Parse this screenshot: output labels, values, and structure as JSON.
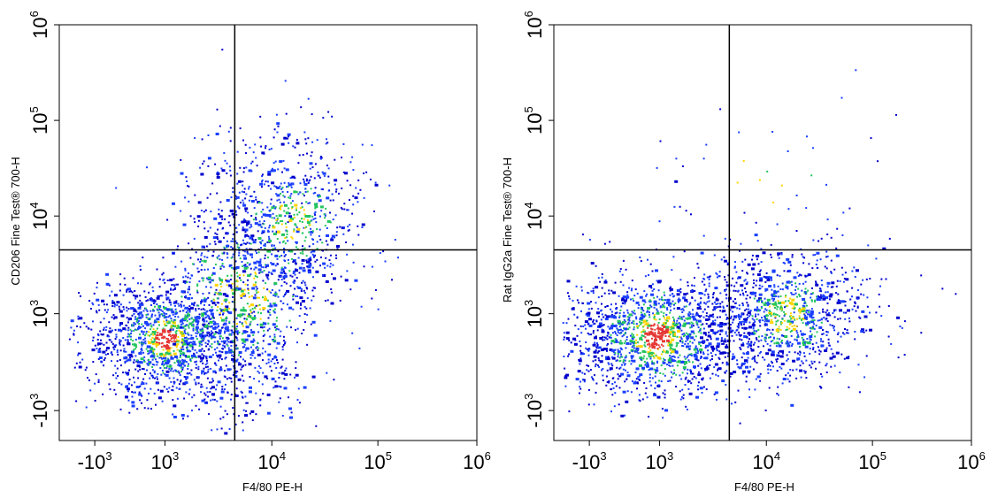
{
  "chart_data": [
    {
      "type": "scatter",
      "subtype": "flow-cytometry-density-dot-plot",
      "xlabel": "F4/80 PE-H",
      "ylabel": "CD206 Fine Test® 700-H",
      "x_scale": "biexponential",
      "y_scale": "biexponential",
      "x_ticks": [
        {
          "base": "-10",
          "exp": "3"
        },
        {
          "base": "10",
          "exp": "3"
        },
        {
          "base": "10",
          "exp": "4"
        },
        {
          "base": "10",
          "exp": "5"
        },
        {
          "base": "10",
          "exp": "6"
        }
      ],
      "y_ticks": [
        {
          "base": "-10",
          "exp": "3"
        },
        {
          "base": "10",
          "exp": "3"
        },
        {
          "base": "10",
          "exp": "4"
        },
        {
          "base": "10",
          "exp": "5"
        },
        {
          "base": "10",
          "exp": "6"
        }
      ],
      "gate": {
        "x": 4500,
        "y": 4500
      },
      "density_colors": [
        "#0000cc",
        "#1a3fff",
        "#22c55e",
        "#ffd400",
        "#e53935"
      ],
      "populations": [
        {
          "x": 1000,
          "y": 500,
          "count": 1400,
          "spread_x": 0.28,
          "spread_y": 0.2
        },
        {
          "x": 5000,
          "y": 1500,
          "count": 900,
          "spread_x": 0.22,
          "spread_y": 0.45
        },
        {
          "x": 15000,
          "y": 9000,
          "count": 700,
          "spread_x": 0.25,
          "spread_y": 0.3
        }
      ]
    },
    {
      "type": "scatter",
      "subtype": "flow-cytometry-density-dot-plot",
      "xlabel": "F4/80 PE-H",
      "ylabel": "Rat IgG2a Fine Test® 700-H",
      "x_scale": "biexponential",
      "y_scale": "biexponential",
      "x_ticks": [
        {
          "base": "-10",
          "exp": "3"
        },
        {
          "base": "10",
          "exp": "3"
        },
        {
          "base": "10",
          "exp": "4"
        },
        {
          "base": "10",
          "exp": "5"
        },
        {
          "base": "10",
          "exp": "6"
        }
      ],
      "y_ticks": [
        {
          "base": "-10",
          "exp": "3"
        },
        {
          "base": "10",
          "exp": "3"
        },
        {
          "base": "10",
          "exp": "4"
        },
        {
          "base": "10",
          "exp": "5"
        },
        {
          "base": "10",
          "exp": "6"
        }
      ],
      "gate": {
        "x": 4500,
        "y": 4500
      },
      "density_colors": [
        "#0000cc",
        "#1a3fff",
        "#22c55e",
        "#ffd400",
        "#e53935"
      ],
      "populations": [
        {
          "x": 900,
          "y": 550,
          "count": 1500,
          "spread_x": 0.35,
          "spread_y": 0.2
        },
        {
          "x": 15000,
          "y": 1000,
          "count": 1000,
          "spread_x": 0.28,
          "spread_y": 0.22
        },
        {
          "x": 8000,
          "y": 20000,
          "count": 60,
          "spread_x": 0.5,
          "spread_y": 0.35
        }
      ]
    }
  ]
}
